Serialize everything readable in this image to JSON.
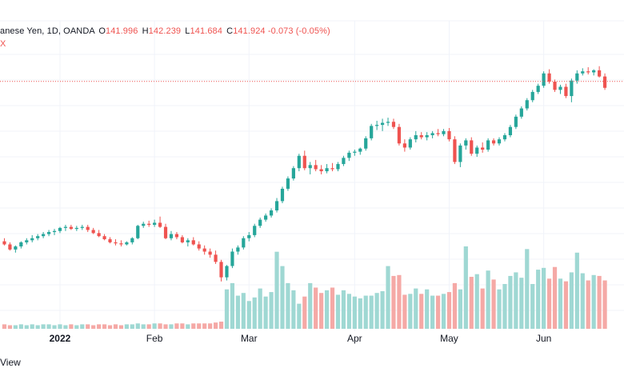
{
  "legend": {
    "symbol": "anese Yen, 1D, OANDA",
    "open_label": "O",
    "open": "141.996",
    "high_label": "H",
    "high": "142.239",
    "low_label": "L",
    "low": "141.684",
    "close_label": "C",
    "close": "141.924",
    "change": "-0.073 (-0.05%)",
    "sub_text": "X"
  },
  "footer": {
    "text": "View"
  },
  "colors": {
    "up": "#26a69a",
    "down": "#ef5350",
    "up_volume": "#9fd8d3",
    "down_volume": "#f5a9a6",
    "grid": "#f0f3fa",
    "price_line": "#ef5350"
  },
  "chart_data": {
    "type": "candlestick",
    "x_tick_labels": [
      "2022",
      "Feb",
      "Mar",
      "Apr",
      "May",
      "Jun"
    ],
    "bold_tick": "2022",
    "last_close": 141.924,
    "ohlc": [
      [
        115.3,
        115.6,
        114.9,
        115.0
      ],
      [
        115.0,
        115.2,
        114.4,
        114.5
      ],
      [
        114.5,
        114.9,
        114.2,
        114.8
      ],
      [
        114.8,
        115.3,
        114.6,
        115.2
      ],
      [
        115.2,
        115.6,
        115.0,
        115.4
      ],
      [
        115.4,
        115.9,
        115.2,
        115.6
      ],
      [
        115.6,
        116.0,
        115.4,
        115.8
      ],
      [
        115.8,
        116.2,
        115.6,
        116.0
      ],
      [
        116.0,
        116.4,
        115.8,
        116.2
      ],
      [
        116.2,
        116.5,
        115.9,
        116.3
      ],
      [
        116.3,
        116.7,
        116.1,
        116.6
      ],
      [
        116.6,
        116.9,
        116.3,
        116.7
      ],
      [
        116.7,
        116.9,
        116.4,
        116.5
      ],
      [
        116.5,
        116.8,
        116.3,
        116.6
      ],
      [
        116.6,
        116.9,
        116.4,
        116.7
      ],
      [
        116.7,
        116.9,
        116.2,
        116.4
      ],
      [
        116.4,
        116.6,
        116.0,
        116.1
      ],
      [
        116.1,
        116.4,
        115.7,
        115.8
      ],
      [
        115.8,
        116.0,
        115.4,
        115.5
      ],
      [
        115.5,
        115.7,
        115.1,
        115.2
      ],
      [
        115.2,
        115.5,
        114.9,
        115.1
      ],
      [
        115.1,
        115.4,
        114.8,
        115.0
      ],
      [
        115.0,
        115.3,
        114.9,
        115.2
      ],
      [
        115.2,
        115.7,
        115.0,
        115.6
      ],
      [
        115.6,
        116.9,
        115.5,
        116.8
      ],
      [
        116.8,
        117.2,
        116.6,
        117.0
      ],
      [
        117.0,
        117.3,
        116.7,
        116.9
      ],
      [
        116.9,
        117.4,
        116.7,
        117.1
      ],
      [
        117.1,
        117.7,
        116.6,
        116.7
      ],
      [
        116.7,
        117.0,
        115.5,
        115.6
      ],
      [
        115.6,
        116.3,
        115.4,
        116.0
      ],
      [
        116.0,
        116.2,
        115.5,
        115.7
      ],
      [
        115.7,
        115.9,
        115.1,
        115.2
      ],
      [
        115.2,
        115.6,
        114.8,
        115.4
      ],
      [
        115.4,
        115.7,
        114.9,
        115.0
      ],
      [
        115.0,
        115.3,
        114.4,
        114.6
      ],
      [
        114.6,
        114.9,
        114.0,
        114.3
      ],
      [
        114.3,
        114.6,
        113.7,
        114.0
      ],
      [
        114.0,
        114.4,
        113.1,
        113.3
      ],
      [
        113.3,
        113.5,
        111.4,
        111.8
      ],
      [
        111.8,
        113.0,
        111.5,
        112.9
      ],
      [
        112.9,
        114.6,
        112.7,
        114.3
      ],
      [
        114.3,
        114.9,
        114.0,
        114.7
      ],
      [
        114.7,
        115.8,
        114.5,
        115.6
      ],
      [
        115.6,
        116.2,
        115.3,
        115.9
      ],
      [
        115.9,
        117.0,
        115.7,
        116.8
      ],
      [
        116.8,
        117.6,
        116.6,
        117.4
      ],
      [
        117.4,
        118.0,
        117.2,
        117.8
      ],
      [
        117.8,
        118.5,
        117.6,
        118.3
      ],
      [
        118.3,
        119.5,
        118.1,
        119.2
      ],
      [
        119.2,
        120.6,
        119.0,
        120.4
      ],
      [
        120.4,
        121.6,
        120.2,
        121.4
      ],
      [
        121.4,
        122.6,
        121.2,
        122.4
      ],
      [
        122.4,
        123.8,
        122.1,
        123.6
      ],
      [
        123.6,
        124.1,
        122.2,
        122.4
      ],
      [
        122.4,
        123.0,
        121.8,
        122.7
      ],
      [
        122.7,
        123.2,
        122.1,
        122.3
      ],
      [
        122.3,
        122.7,
        121.8,
        122.1
      ],
      [
        122.1,
        122.8,
        121.9,
        122.4
      ],
      [
        122.4,
        122.9,
        122.1,
        122.3
      ],
      [
        122.3,
        123.0,
        122.1,
        122.8
      ],
      [
        122.8,
        123.6,
        122.6,
        123.4
      ],
      [
        123.4,
        124.1,
        123.1,
        123.9
      ],
      [
        123.9,
        124.2,
        123.6,
        124.0
      ],
      [
        124.0,
        124.4,
        123.7,
        124.3
      ],
      [
        124.3,
        125.5,
        124.1,
        125.3
      ],
      [
        125.3,
        126.7,
        125.1,
        126.5
      ],
      [
        126.5,
        127.0,
        126.1,
        126.6
      ],
      [
        126.6,
        127.2,
        126.0,
        126.8
      ],
      [
        126.8,
        127.3,
        126.5,
        126.9
      ],
      [
        126.9,
        127.2,
        126.2,
        126.4
      ],
      [
        126.4,
        126.7,
        124.6,
        124.8
      ],
      [
        124.8,
        125.2,
        124.0,
        124.4
      ],
      [
        124.4,
        125.4,
        124.2,
        125.2
      ],
      [
        125.2,
        126.0,
        124.9,
        125.6
      ],
      [
        125.6,
        125.9,
        125.2,
        125.4
      ],
      [
        125.4,
        125.9,
        125.1,
        125.6
      ],
      [
        125.6,
        126.0,
        125.3,
        125.8
      ],
      [
        125.8,
        126.2,
        125.5,
        125.7
      ],
      [
        125.7,
        126.2,
        125.5,
        126.0
      ],
      [
        126.0,
        126.3,
        125.0,
        125.2
      ],
      [
        125.2,
        125.5,
        122.8,
        123.0
      ],
      [
        123.0,
        124.8,
        122.5,
        124.6
      ],
      [
        124.6,
        125.3,
        124.2,
        125.1
      ],
      [
        125.1,
        125.4,
        123.6,
        123.8
      ],
      [
        123.8,
        124.6,
        123.5,
        124.4
      ],
      [
        124.4,
        124.9,
        123.9,
        124.2
      ],
      [
        124.2,
        125.3,
        124.0,
        125.1
      ],
      [
        125.1,
        125.3,
        124.6,
        124.8
      ],
      [
        124.8,
        125.4,
        124.6,
        125.2
      ],
      [
        125.2,
        125.8,
        125.0,
        125.6
      ],
      [
        125.6,
        126.6,
        125.4,
        126.4
      ],
      [
        126.4,
        127.6,
        126.2,
        127.4
      ],
      [
        127.4,
        128.4,
        127.2,
        128.2
      ],
      [
        128.2,
        129.2,
        128.0,
        129.0
      ],
      [
        129.0,
        130.0,
        128.8,
        129.8
      ],
      [
        129.8,
        130.6,
        129.6,
        130.4
      ],
      [
        130.4,
        131.8,
        130.2,
        131.6
      ],
      [
        131.6,
        132.0,
        130.6,
        130.8
      ],
      [
        130.8,
        131.0,
        129.8,
        130.0
      ],
      [
        130.0,
        130.5,
        129.6,
        130.3
      ],
      [
        130.3,
        130.6,
        129.2,
        129.4
      ],
      [
        129.4,
        131.1,
        128.8,
        130.9
      ],
      [
        130.9,
        131.9,
        130.6,
        131.6
      ],
      [
        131.6,
        132.1,
        131.4,
        131.8
      ],
      [
        131.8,
        132.2,
        131.5,
        131.7
      ],
      [
        131.7,
        132.0,
        131.4,
        131.9
      ],
      [
        131.9,
        132.3,
        131.2,
        131.3
      ],
      [
        131.3,
        131.6,
        130.0,
        130.2
      ]
    ],
    "volumes": [
      0.5,
      0.4,
      0.4,
      0.5,
      0.4,
      0.5,
      0.4,
      0.5,
      0.5,
      0.4,
      0.5,
      0.4,
      0.5,
      0.4,
      0.5,
      0.5,
      0.4,
      0.5,
      0.5,
      0.4,
      0.5,
      0.4,
      0.5,
      0.5,
      0.6,
      0.5,
      0.5,
      0.6,
      0.6,
      0.5,
      0.5,
      0.6,
      0.6,
      0.5,
      0.6,
      0.6,
      0.6,
      0.6,
      0.7,
      0.8,
      4.4,
      5.1,
      3.7,
      4.0,
      3.1,
      3.5,
      4.5,
      3.6,
      4.1,
      8.6,
      7.0,
      5.1,
      4.3,
      2.8,
      3.6,
      5.1,
      4.6,
      4.0,
      4.3,
      4.6,
      3.8,
      4.3,
      3.9,
      3.6,
      3.4,
      3.7,
      3.7,
      4.0,
      4.2,
      7.0,
      5.9,
      6.0,
      3.8,
      3.9,
      4.5,
      3.9,
      4.4,
      3.7,
      3.7,
      3.9,
      4.1,
      5.1,
      4.4,
      9.2,
      5.8,
      6.1,
      4.5,
      6.5,
      5.5,
      4.4,
      5.0,
      5.9,
      6.3,
      5.7,
      8.9,
      5.0,
      6.6,
      6.8,
      5.6,
      6.9,
      5.6,
      5.3,
      6.3,
      8.5,
      6.2,
      5.4,
      6.0,
      5.9,
      5.4,
      5.7
    ]
  }
}
